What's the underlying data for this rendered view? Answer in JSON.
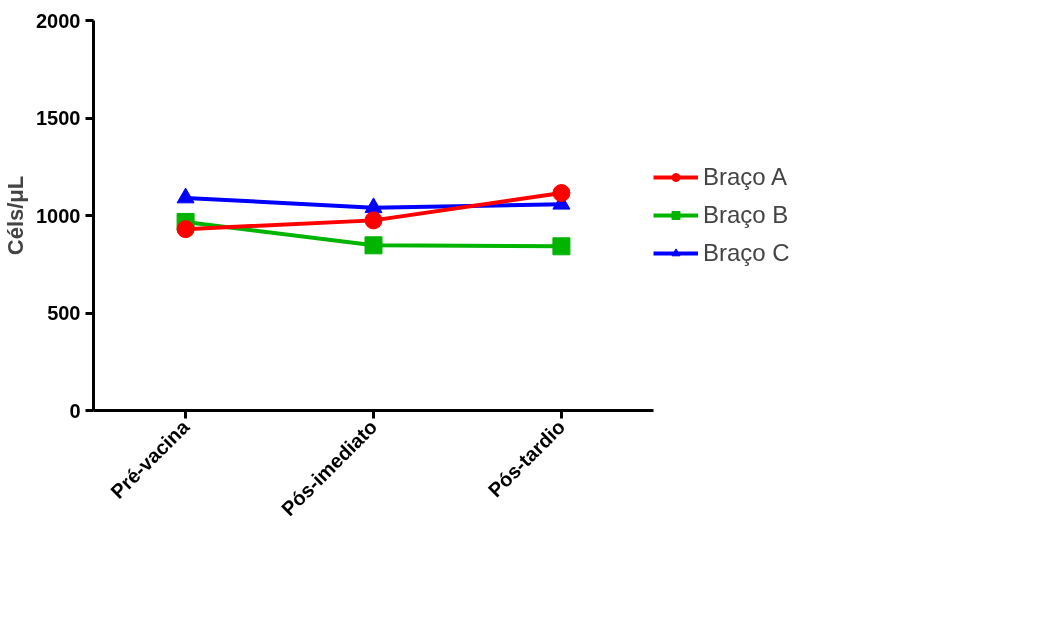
{
  "chart_data": {
    "type": "line",
    "ylabel": "Céls/μL",
    "categories": [
      "Pré-vacina",
      "Pós-imediato",
      "Pós-tardio"
    ],
    "series": [
      {
        "name": "Braço A",
        "color": "#ff0000",
        "marker": "circle",
        "values": [
          930,
          975,
          1115
        ]
      },
      {
        "name": "Braço B",
        "color": "#00b400",
        "marker": "square",
        "values": [
          967,
          847,
          842
        ]
      },
      {
        "name": "Braço C",
        "color": "#0000ff",
        "marker": "triangle",
        "values": [
          1090,
          1040,
          1058
        ]
      }
    ],
    "ylim": [
      0,
      2000
    ],
    "yticks": [
      0,
      500,
      1000,
      1500,
      2000
    ],
    "grid": false,
    "legend": "right",
    "line_style": "solid"
  }
}
